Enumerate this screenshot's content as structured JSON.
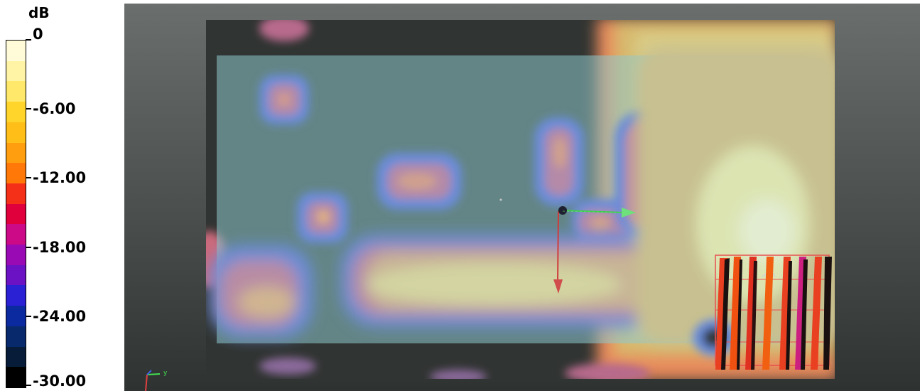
{
  "legend": {
    "unit": "dB",
    "labels": [
      "0",
      "-6.00",
      "-12.00",
      "-18.00",
      "-24.00",
      "-30.00"
    ],
    "colors": [
      "#fffbd8",
      "#fff3a6",
      "#ffe86a",
      "#ffd52c",
      "#ffbe18",
      "#ff9f10",
      "#ff7808",
      "#f43018",
      "#e0003c",
      "#cc0a88",
      "#9a0ab4",
      "#6a12c4",
      "#2a20d4",
      "#0c2aa0",
      "#082a6c",
      "#061c38",
      "#000000"
    ]
  },
  "viewport": {
    "axis_label": "y"
  }
}
